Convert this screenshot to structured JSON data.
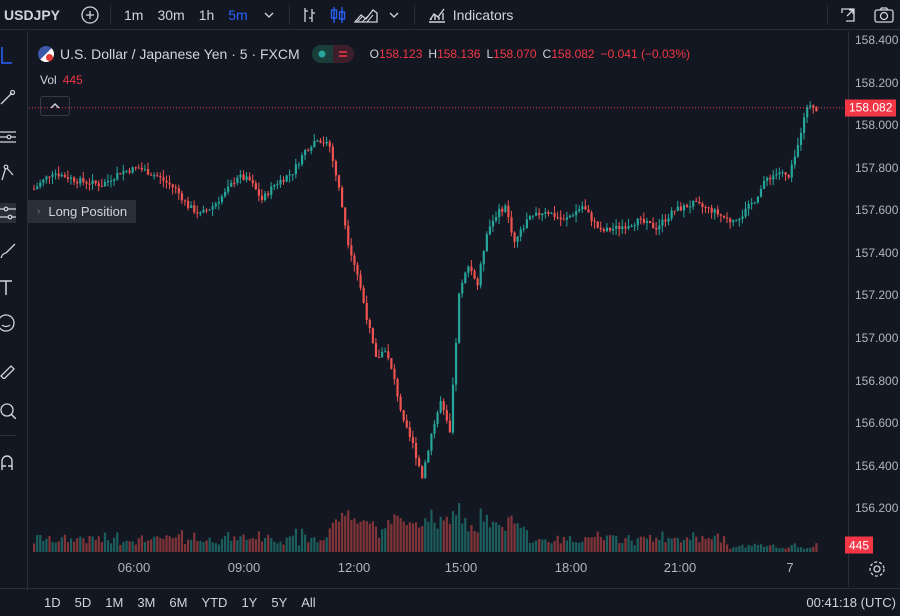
{
  "toolbar": {
    "symbol": "USDJPY",
    "intervals": [
      "1m",
      "30m",
      "1h",
      "5m"
    ],
    "active_interval": "5m",
    "indicators_label": "Indicators"
  },
  "legend": {
    "title": "U.S. Dollar / Japanese Yen · 5 · FXCM",
    "ohlc": {
      "open_key": "O",
      "open": "158.123",
      "high_key": "H",
      "high": "158.136",
      "low_key": "L",
      "low": "158.070",
      "close_key": "C",
      "close": "158.082",
      "change": "−0.041 (−0.03%)"
    },
    "vol_label": "Vol",
    "vol_value": "445"
  },
  "tooltip": "Long Position",
  "price_axis": {
    "labels": [
      "158.400",
      "158.200",
      "158.000",
      "157.800",
      "157.600",
      "157.400",
      "157.200",
      "157.000",
      "156.800",
      "156.600",
      "156.400",
      "156.200"
    ],
    "current_price": "158.082",
    "volume_tag": "445"
  },
  "time_axis": {
    "labels": [
      "06:00",
      "09:00",
      "12:00",
      "15:00",
      "18:00",
      "21:00",
      "7"
    ]
  },
  "bottom_bar": {
    "ranges": [
      "1D",
      "5D",
      "1M",
      "3M",
      "6M",
      "YTD",
      "1Y",
      "5Y",
      "All"
    ],
    "clock": "00:41:18 (UTC)"
  },
  "colors": {
    "up": "#26a69a",
    "down": "#ef5350",
    "accent": "#2962ff",
    "background": "#131722"
  },
  "chart_data": {
    "type": "candlestick",
    "symbol": "USDJPY",
    "timeframe": "5",
    "ylim": [
      156.15,
      158.4
    ],
    "x_ticks": [
      "06:00",
      "09:00",
      "12:00",
      "15:00",
      "18:00",
      "21:00",
      "7"
    ],
    "path_points": [
      [
        0,
        157.7
      ],
      [
        6,
        157.78
      ],
      [
        14,
        157.74
      ],
      [
        22,
        157.72
      ],
      [
        28,
        157.78
      ],
      [
        34,
        157.8
      ],
      [
        40,
        157.76
      ],
      [
        46,
        157.7
      ],
      [
        50,
        157.62
      ],
      [
        54,
        157.58
      ],
      [
        58,
        157.62
      ],
      [
        62,
        157.68
      ],
      [
        66,
        157.76
      ],
      [
        70,
        157.74
      ],
      [
        74,
        157.65
      ],
      [
        78,
        157.72
      ],
      [
        84,
        157.78
      ],
      [
        88,
        157.88
      ],
      [
        92,
        157.94
      ],
      [
        96,
        157.9
      ],
      [
        99,
        157.7
      ],
      [
        102,
        157.45
      ],
      [
        105,
        157.3
      ],
      [
        108,
        157.1
      ],
      [
        111,
        156.9
      ],
      [
        114,
        156.95
      ],
      [
        117,
        156.8
      ],
      [
        120,
        156.6
      ],
      [
        123,
        156.5
      ],
      [
        126,
        156.35
      ],
      [
        129,
        156.55
      ],
      [
        132,
        156.7
      ],
      [
        135,
        156.55
      ],
      [
        138,
        157.2
      ],
      [
        141,
        157.35
      ],
      [
        144,
        157.25
      ],
      [
        147,
        157.5
      ],
      [
        150,
        157.58
      ],
      [
        153,
        157.62
      ],
      [
        156,
        157.45
      ],
      [
        160,
        157.55
      ],
      [
        166,
        157.6
      ],
      [
        172,
        157.55
      ],
      [
        178,
        157.62
      ],
      [
        184,
        157.5
      ],
      [
        190,
        157.52
      ],
      [
        196,
        157.55
      ],
      [
        202,
        157.52
      ],
      [
        208,
        157.6
      ],
      [
        214,
        157.63
      ],
      [
        220,
        157.6
      ],
      [
        226,
        157.55
      ],
      [
        230,
        157.58
      ],
      [
        234,
        157.65
      ],
      [
        238,
        157.75
      ],
      [
        242,
        157.78
      ],
      [
        245,
        157.75
      ],
      [
        248,
        157.9
      ],
      [
        250,
        158.05
      ],
      [
        252,
        158.1
      ],
      [
        254,
        158.08
      ]
    ],
    "last_price": 158.082,
    "last_volume": 445
  }
}
